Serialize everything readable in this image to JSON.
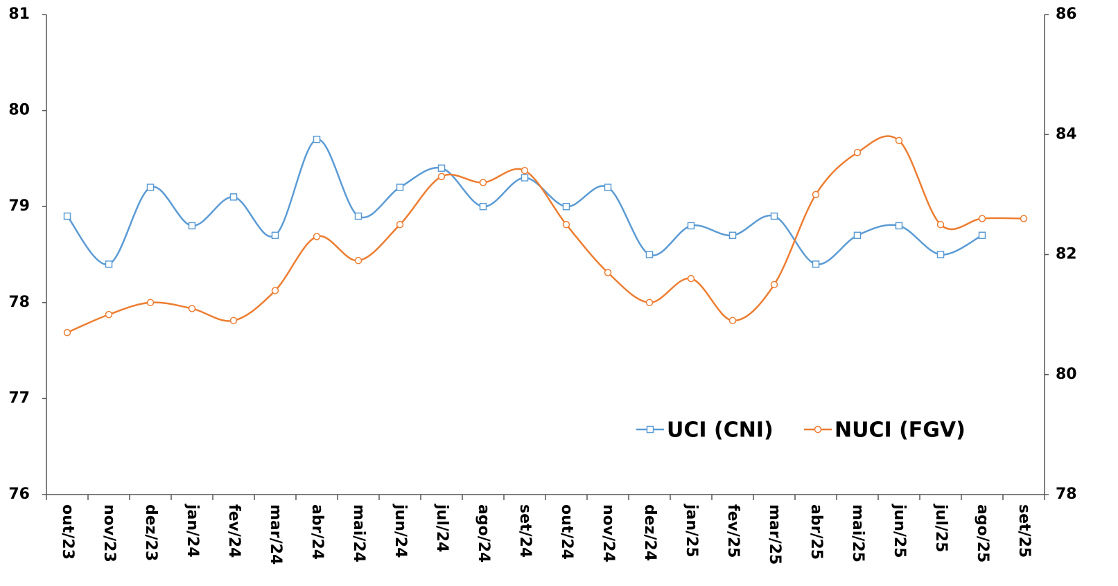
{
  "chart_data": {
    "type": "line",
    "categories": [
      "out/23",
      "nov/23",
      "dez/23",
      "jan/24",
      "fev/24",
      "mar/24",
      "abr/24",
      "mai/24",
      "jun/24",
      "jul/24",
      "ago/24",
      "set/24",
      "out/24",
      "nov/24",
      "dez/24",
      "jan/25",
      "fev/25",
      "mar/25",
      "abr/25",
      "mai/25",
      "jun/25",
      "jul/25",
      "ago/25",
      "set/25"
    ],
    "series": [
      {
        "name": "UCI (CNI)",
        "color": "#5b9bd5",
        "marker": "square",
        "values": [
          78.9,
          78.4,
          79.2,
          78.8,
          79.1,
          78.7,
          79.7,
          78.9,
          79.2,
          79.4,
          79.0,
          79.3,
          79.0,
          79.2,
          78.5,
          78.8,
          78.7,
          78.9,
          78.4,
          78.7,
          78.8,
          78.5,
          78.7,
          null
        ]
      },
      {
        "name": "NUCI (FGV)",
        "color": "#ed7d31",
        "marker": "circle",
        "axis": "y2",
        "values": [
          80.7,
          81.0,
          81.2,
          81.1,
          80.9,
          81.4,
          82.3,
          81.9,
          82.5,
          83.3,
          83.2,
          83.4,
          82.5,
          81.7,
          81.2,
          81.6,
          80.9,
          81.5,
          83.0,
          83.7,
          83.9,
          82.5,
          82.6,
          82.6
        ]
      }
    ],
    "ylim": [
      76,
      81
    ],
    "yticks": [
      76,
      77,
      78,
      79,
      80,
      81
    ],
    "y2lim": [
      78,
      86
    ],
    "y2ticks": [
      78,
      80,
      82,
      84,
      86
    ],
    "smooth": true
  }
}
